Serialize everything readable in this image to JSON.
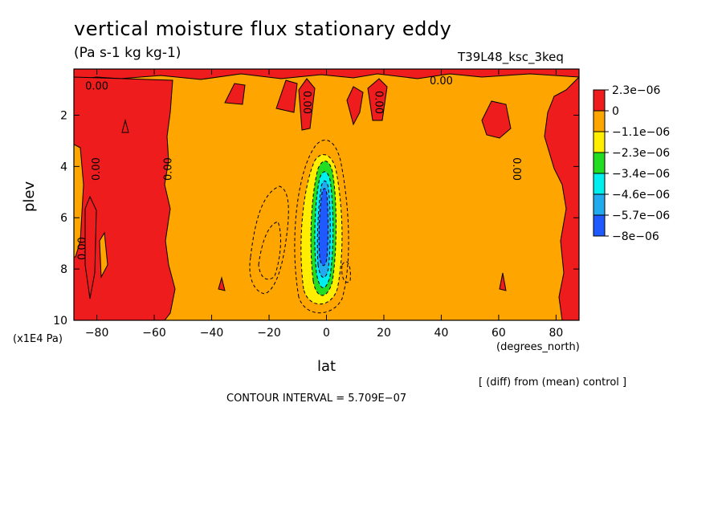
{
  "chart_data": {
    "type": "heatmap",
    "title": "vertical moisture flux stationary eddy",
    "units": "(Pa s-1 kg kg-1)",
    "run_id": "T39L48_ksc_3keq",
    "xlabel": "lat",
    "ylabel": "plev",
    "x_unit_label": "(degrees_north)",
    "y_unit_label": "(x1E4 Pa)",
    "xlim": [
      -88,
      88
    ],
    "ylim": [
      10,
      0.2
    ],
    "x_ticks": [
      -80,
      -60,
      -40,
      -20,
      0,
      20,
      40,
      60,
      80
    ],
    "x_tick_labels": [
      "−80",
      "−60",
      "−40",
      "−20",
      "0",
      "20",
      "40",
      "60",
      "80"
    ],
    "y_ticks": [
      2,
      4,
      6,
      8,
      10
    ],
    "y_tick_labels": [
      "2",
      "4",
      "6",
      "8",
      "10"
    ],
    "legend_levels": [
      {
        "label": "2.3e−06",
        "color": "#ee1c1c"
      },
      {
        "label": "0",
        "color": "#ffa500"
      },
      {
        "label": "−1.1e−06",
        "color": "#ffee00"
      },
      {
        "label": "−2.3e−06",
        "color": "#22dd22"
      },
      {
        "label": "−3.4e−06",
        "color": "#00eeee"
      },
      {
        "label": "−4.6e−06",
        "color": "#22aaee"
      },
      {
        "label": "−5.7e−06",
        "color": "#1e5aff"
      },
      {
        "label": "−8e−06",
        "color": null
      }
    ],
    "contour_labels": [
      {
        "text": "0.00",
        "lat": -80,
        "plev": 1.0,
        "rot": 0
      },
      {
        "text": "0.00",
        "lat": 40,
        "plev": 0.8,
        "rot": 0
      },
      {
        "text": "0.00",
        "lat": -79,
        "plev": 4.1,
        "rot": -90
      },
      {
        "text": "0.00",
        "lat": -54,
        "plev": 4.1,
        "rot": -90
      },
      {
        "text": "0.00",
        "lat": -84,
        "plev": 7.2,
        "rot": -90
      },
      {
        "text": "0.00",
        "lat": -8,
        "plev": 1.5,
        "rot": 90
      },
      {
        "text": "0.00",
        "lat": 17,
        "plev": 1.5,
        "rot": 90
      },
      {
        "text": "0.00",
        "lat": 65,
        "plev": 4.1,
        "rot": 90
      }
    ],
    "legend_placement": "right",
    "contour_interval_note": "CONTOUR INTERVAL = 5.709E−07",
    "diff_note": "[ (diff) from (mean) control ]"
  }
}
